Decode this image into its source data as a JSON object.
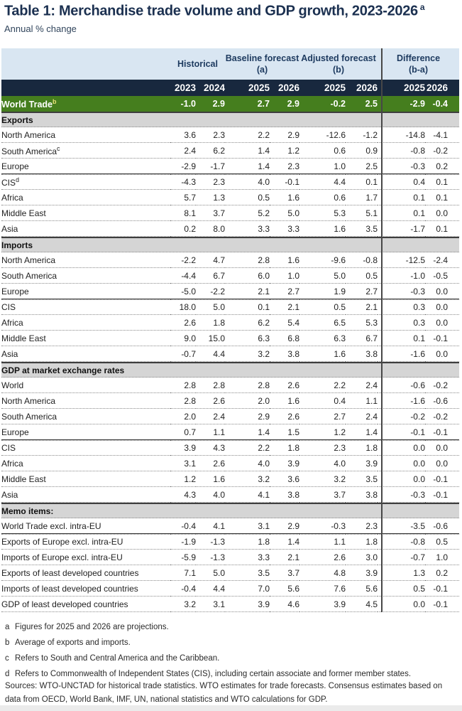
{
  "title": {
    "text": "Table 1: Merchandise trade volume and GDP growth, 2023-2026",
    "sup": "a"
  },
  "subtitle": "Annual % change",
  "colors": {
    "band": "#d9e6f2",
    "navy": "#18283e",
    "green": "#457e1e",
    "section": "#d5d5d5",
    "title": "#1b3050",
    "divider": "#474747",
    "sup_accent": "#e9e27a"
  },
  "table": {
    "group_headers": [
      {
        "label": "Historical",
        "sub": ""
      },
      {
        "label": "Baseline forecast",
        "sub": "(a)"
      },
      {
        "label": "Adjusted forecast",
        "sub": "(b)"
      },
      {
        "label": "Difference",
        "sub": "(b-a)"
      }
    ],
    "year_headers": [
      "2023",
      "2024",
      "2025",
      "2026",
      "2025",
      "2026",
      "2025",
      "2026"
    ],
    "world_trade": {
      "label": "World Trade",
      "sup": "b",
      "values": [
        "-1.0",
        "2.9",
        "2.7",
        "2.9",
        "-0.2",
        "2.5",
        "-2.9",
        "-0.4"
      ]
    },
    "sections": [
      {
        "header": "Exports",
        "rows": [
          {
            "label": "North America",
            "values": [
              "3.6",
              "2.3",
              "2.2",
              "2.9",
              "-12.6",
              "-1.2",
              "-14.8",
              "-4.1"
            ]
          },
          {
            "label": "South America",
            "sup": "c",
            "values": [
              "2.4",
              "6.2",
              "1.4",
              "1.2",
              "0.6",
              "0.9",
              "-0.8",
              "-0.2"
            ]
          },
          {
            "label": "Europe",
            "solid_bottom": true,
            "values": [
              "-2.9",
              "-1.7",
              "1.4",
              "2.3",
              "1.0",
              "2.5",
              "-0.3",
              "0.2"
            ]
          },
          {
            "label": "CIS",
            "sup": "d",
            "values": [
              "-4.3",
              "2.3",
              "4.0",
              "-0.1",
              "4.4",
              "0.1",
              "0.4",
              "0.1"
            ]
          },
          {
            "label": "Africa",
            "values": [
              "5.7",
              "1.3",
              "0.5",
              "1.6",
              "0.6",
              "1.7",
              "0.1",
              "0.1"
            ]
          },
          {
            "label": "Middle East",
            "values": [
              "8.1",
              "3.7",
              "5.2",
              "5.0",
              "5.3",
              "5.1",
              "0.1",
              "0.0"
            ]
          },
          {
            "label": "Asia",
            "values": [
              "0.2",
              "8.0",
              "3.3",
              "3.3",
              "1.6",
              "3.5",
              "-1.7",
              "0.1"
            ]
          }
        ]
      },
      {
        "header": "Imports",
        "rows": [
          {
            "label": "North America",
            "values": [
              "-2.2",
              "4.7",
              "2.8",
              "1.6",
              "-9.6",
              "-0.8",
              "-12.5",
              "-2.4"
            ]
          },
          {
            "label": "South America",
            "values": [
              "-4.4",
              "6.7",
              "6.0",
              "1.0",
              "5.0",
              "0.5",
              "-1.0",
              "-0.5"
            ]
          },
          {
            "label": "Europe",
            "solid_bottom": true,
            "values": [
              "-5.0",
              "-2.2",
              "2.1",
              "2.7",
              "1.9",
              "2.7",
              "-0.3",
              "0.0"
            ]
          },
          {
            "label": "CIS",
            "values": [
              "18.0",
              "5.0",
              "0.1",
              "2.1",
              "0.5",
              "2.1",
              "0.3",
              "0.0"
            ]
          },
          {
            "label": "Africa",
            "values": [
              "2.6",
              "1.8",
              "6.2",
              "5.4",
              "6.5",
              "5.3",
              "0.3",
              "0.0"
            ]
          },
          {
            "label": "Middle East",
            "values": [
              "9.0",
              "15.0",
              "6.3",
              "6.8",
              "6.3",
              "6.7",
              "0.1",
              "-0.1"
            ]
          },
          {
            "label": "Asia",
            "values": [
              "-0.7",
              "4.4",
              "3.2",
              "3.8",
              "1.6",
              "3.8",
              "-1.6",
              "0.0"
            ]
          }
        ]
      },
      {
        "header": "GDP at market exchange rates",
        "rows": [
          {
            "label": "World",
            "values": [
              "2.8",
              "2.8",
              "2.8",
              "2.6",
              "2.2",
              "2.4",
              "-0.6",
              "-0.2"
            ]
          },
          {
            "label": "North America",
            "values": [
              "2.8",
              "2.6",
              "2.0",
              "1.6",
              "0.4",
              "1.1",
              "-1.6",
              "-0.6"
            ]
          },
          {
            "label": "South America",
            "values": [
              "2.0",
              "2.4",
              "2.9",
              "2.6",
              "2.7",
              "2.4",
              "-0.2",
              "-0.2"
            ]
          },
          {
            "label": "Europe",
            "solid_bottom": true,
            "values": [
              "0.7",
              "1.1",
              "1.4",
              "1.5",
              "1.2",
              "1.4",
              "-0.1",
              "-0.1"
            ]
          },
          {
            "label": "CIS",
            "values": [
              "3.9",
              "4.3",
              "2.2",
              "1.8",
              "2.3",
              "1.8",
              "0.0",
              "0.0"
            ]
          },
          {
            "label": "Africa",
            "values": [
              "3.1",
              "2.6",
              "4.0",
              "3.9",
              "4.0",
              "3.9",
              "0.0",
              "0.0"
            ]
          },
          {
            "label": "Middle East",
            "values": [
              "1.2",
              "1.6",
              "3.2",
              "3.6",
              "3.2",
              "3.5",
              "0.0",
              "-0.1"
            ]
          },
          {
            "label": "Asia",
            "values": [
              "4.3",
              "4.0",
              "4.1",
              "3.8",
              "3.7",
              "3.8",
              "-0.3",
              "-0.1"
            ]
          }
        ]
      },
      {
        "header": "Memo items:",
        "rows": [
          {
            "label": "World Trade excl. intra-EU",
            "solid_bottom": true,
            "values": [
              "-0.4",
              "4.1",
              "3.1",
              "2.9",
              "-0.3",
              "2.3",
              "-3.5",
              "-0.6"
            ]
          },
          {
            "label": "Exports of Europe excl. intra-EU",
            "values": [
              "-1.9",
              "-1.3",
              "1.8",
              "1.4",
              "1.1",
              "1.8",
              "-0.8",
              "0.5"
            ]
          },
          {
            "label": "Imports of Europe excl. intra-EU",
            "values": [
              "-5.9",
              "-1.3",
              "3.3",
              "2.1",
              "2.6",
              "3.0",
              "-0.7",
              "1.0"
            ]
          },
          {
            "label": "Exports of least developed countries",
            "values": [
              "7.1",
              "5.0",
              "3.5",
              "3.7",
              "4.8",
              "3.9",
              "1.3",
              "0.2"
            ]
          },
          {
            "label": "Imports of least developed countries",
            "values": [
              "-0.4",
              "4.4",
              "7.0",
              "5.6",
              "7.6",
              "5.6",
              "0.5",
              "-0.1"
            ]
          },
          {
            "label": "GDP of least developed countries",
            "values": [
              "3.2",
              "3.1",
              "3.9",
              "4.6",
              "3.9",
              "4.5",
              "0.0",
              "-0.1"
            ]
          }
        ]
      }
    ]
  },
  "footnotes": [
    {
      "marker": "a",
      "text": "Figures for 2025 and 2026 are projections."
    },
    {
      "marker": "b",
      "text": "Average of exports and imports."
    },
    {
      "marker": "c",
      "text": "Refers to South and Central America and the Caribbean."
    },
    {
      "marker": "d",
      "text": "Refers to Commonwealth of Independent States (CIS), including certain associate and former member states."
    }
  ],
  "sources": "Sources: WTO-UNCTAD for historical trade statistics. WTO estimates for trade forecasts.  Consensus estimates based on data from OECD, World Bank, IMF, UN, national statistics and WTO calculations for GDP."
}
